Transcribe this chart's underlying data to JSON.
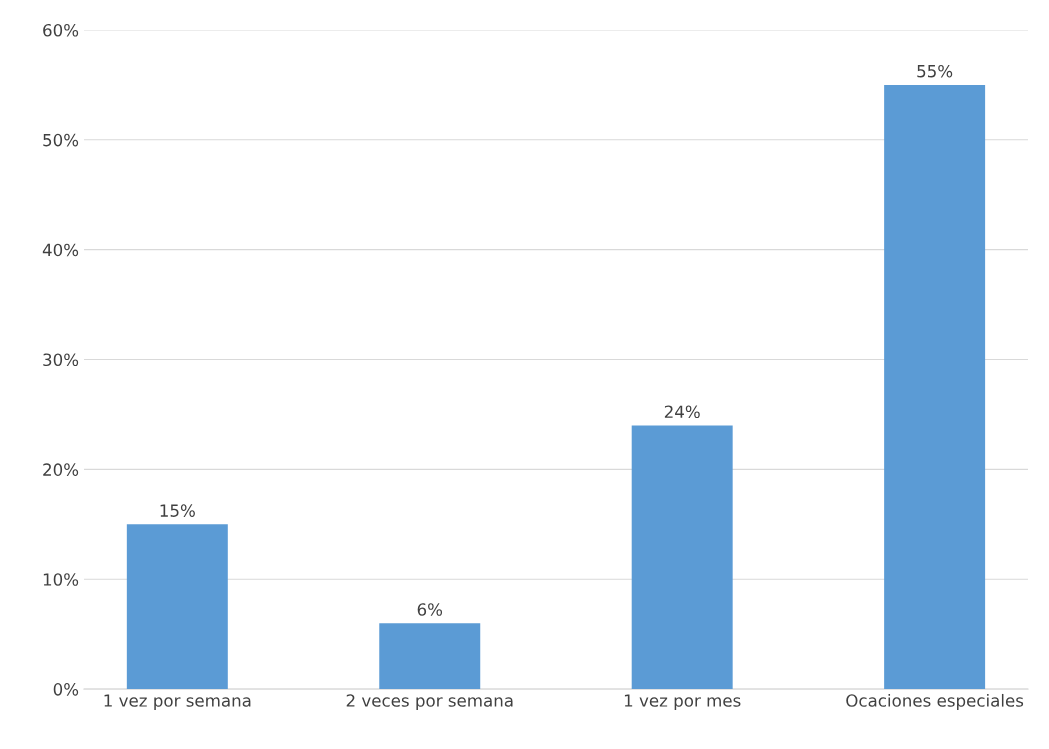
{
  "chart_data": {
    "type": "bar",
    "categories": [
      "1 vez por semana",
      "2 veces por semana",
      "1 vez por mes",
      "Ocaciones especiales"
    ],
    "values": [
      15,
      6,
      24,
      55
    ],
    "value_labels": [
      "15%",
      "6%",
      "24%",
      "55%"
    ],
    "color": "#5b9bd5",
    "ylim": [
      0,
      60
    ],
    "yticks": [
      {
        "value": 0,
        "label": "0%"
      },
      {
        "value": 10,
        "label": "10%"
      },
      {
        "value": 20,
        "label": "20%"
      },
      {
        "value": 30,
        "label": "30%"
      },
      {
        "value": 40,
        "label": "40%"
      },
      {
        "value": 50,
        "label": "50%"
      },
      {
        "value": 60,
        "label": "60%"
      }
    ],
    "grid": "y",
    "legend": false
  }
}
